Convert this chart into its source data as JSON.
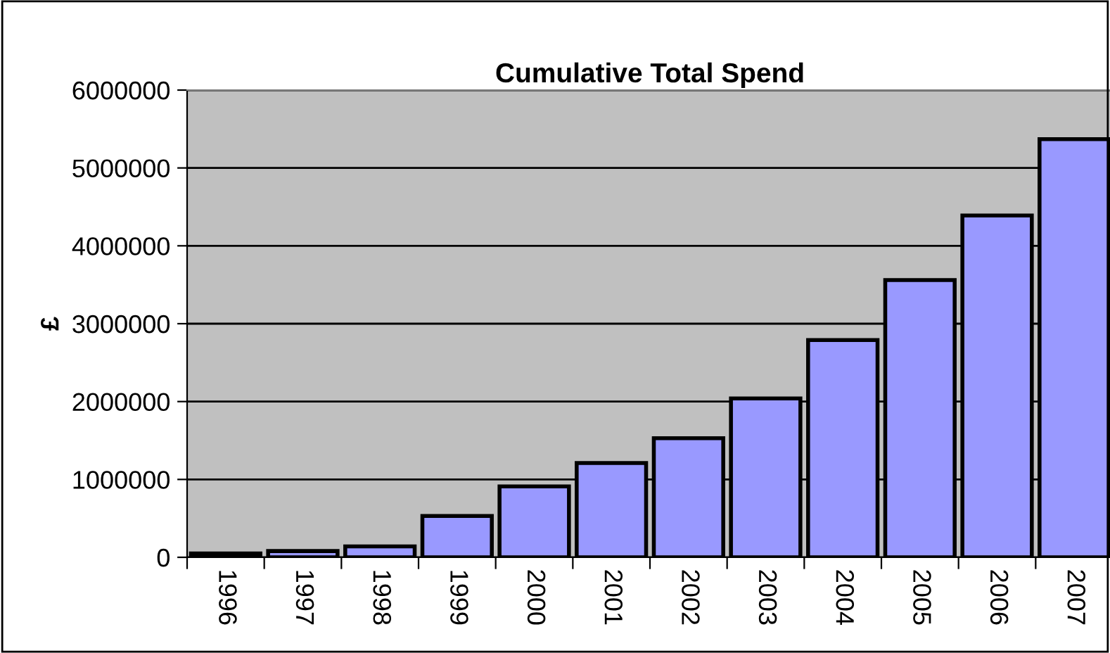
{
  "chart_data": {
    "type": "bar",
    "title": "Cumulative Total Spend",
    "ylabel": "£",
    "categories": [
      "1996",
      "1997",
      "1998",
      "1999",
      "2000",
      "2001",
      "2002",
      "2003",
      "2004",
      "2005",
      "2006",
      "2007"
    ],
    "values": [
      50000,
      80000,
      140000,
      530000,
      910000,
      1210000,
      1530000,
      2040000,
      2790000,
      3560000,
      4390000,
      5370000
    ],
    "color": "#9999ff",
    "ylim": [
      0,
      6000000
    ],
    "yticks": [
      0,
      1000000,
      2000000,
      3000000,
      4000000,
      5000000,
      6000000
    ],
    "grid": "y"
  }
}
